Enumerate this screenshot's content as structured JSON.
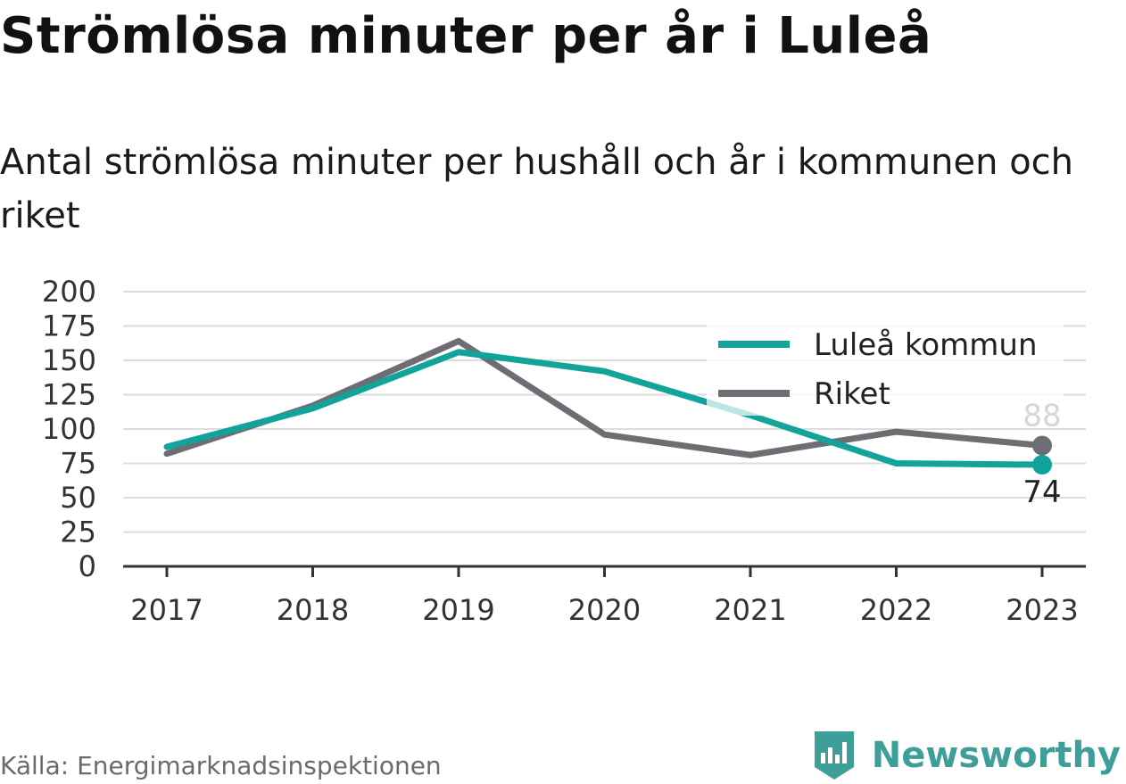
{
  "title": "Strömlösa minuter per år i Luleå",
  "subtitle": "Antal strömlösa minuter per hushåll och år i kommunen och riket",
  "source": "Källa: Energimarknadsinspektionen",
  "brand": "Newsworthy",
  "colors": {
    "lulea": "#12a39a",
    "riket": "#6e6d73",
    "grid": "#dddddd",
    "axis": "#333333",
    "brand": "#3e9e99"
  },
  "chart_data": {
    "type": "line",
    "categories": [
      "2017",
      "2018",
      "2019",
      "2020",
      "2021",
      "2022",
      "2023"
    ],
    "series": [
      {
        "name": "Luleå kommun",
        "values": [
          87,
          115,
          156,
          142,
          110,
          75,
          74
        ]
      },
      {
        "name": "Riket",
        "values": [
          82,
          117,
          164,
          96,
          81,
          98,
          88
        ]
      }
    ],
    "ylim": [
      0,
      200
    ],
    "yticks": [
      0,
      25,
      50,
      75,
      100,
      125,
      150,
      175,
      200
    ],
    "grid": true,
    "legend": "top-right",
    "end_labels": [
      "74",
      "88"
    ]
  }
}
